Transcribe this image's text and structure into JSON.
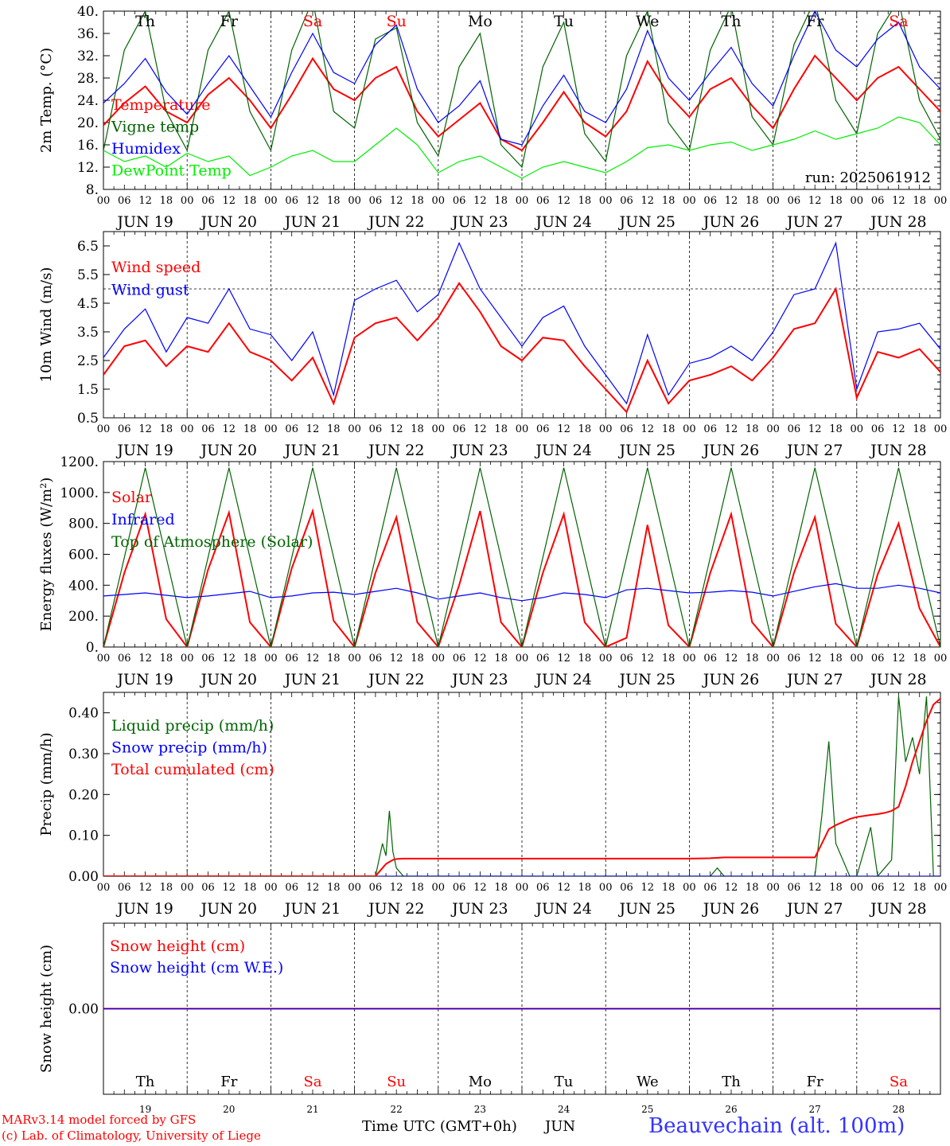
{
  "run_label": "run: 2025061912",
  "days": [
    "Th",
    "Fr",
    "Sa",
    "Su",
    "Mo",
    "Tu",
    "We",
    "Th",
    "Fr",
    "Sa"
  ],
  "weekend_days": [
    2,
    3,
    9
  ],
  "dates": [
    "JUN 19",
    "JUN 20",
    "JUN 21",
    "JUN 22",
    "JUN 23",
    "JUN 24",
    "JUN 25",
    "JUN 26",
    "JUN 27",
    "JUN 28"
  ],
  "day_numbers": [
    "19",
    "20",
    "21",
    "22",
    "23",
    "24",
    "25",
    "26",
    "27",
    "28"
  ],
  "hour_labels": [
    "00",
    "06",
    "12",
    "18"
  ],
  "end_hour_label": "00",
  "footer": {
    "model": "MARv3.14 model forced by GFS",
    "credit": "(c) Lab. of Climatology, University of Liege",
    "axis_title": "Time UTC (GMT+0h)",
    "month": "JUN",
    "station": "Beauvechain (alt. 100m)"
  },
  "colors": {
    "red": "#ff0000",
    "green": "#006400",
    "blue": "#0000ff",
    "lightgreen": "#00ee00",
    "grey": "#000000"
  },
  "chart_data": [
    {
      "type": "line",
      "ylabel": "2m Temp. (°C)",
      "ylim": [
        8,
        40
      ],
      "yticks": [
        8,
        12,
        16,
        20,
        24,
        28,
        32,
        36,
        40
      ],
      "ytick_labels": [
        "8.",
        "12.",
        "16.",
        "20.",
        "24.",
        "28.",
        "32.",
        "36.",
        "40."
      ],
      "x": [
        0,
        6,
        12,
        18,
        24,
        30,
        36,
        42,
        48,
        54,
        60,
        66,
        72,
        78,
        84,
        90,
        96,
        102,
        108,
        114,
        120,
        126,
        132,
        138,
        144,
        150,
        156,
        162,
        168,
        174,
        180,
        186,
        192,
        198,
        204,
        210,
        216,
        222,
        228,
        234,
        240
      ],
      "series": [
        {
          "name": "Temperature",
          "color": "red",
          "values": [
            19.5,
            23.5,
            26.5,
            22,
            20,
            25,
            28,
            24,
            19,
            25,
            31.5,
            26,
            24,
            28,
            30,
            22,
            17.5,
            20.5,
            23.5,
            17,
            15,
            20,
            25.5,
            20,
            17.5,
            22,
            31,
            25,
            21,
            26,
            28,
            23,
            19,
            26,
            32,
            28,
            24,
            28,
            30,
            26,
            22
          ]
        },
        {
          "name": "Vigne temp",
          "color": "green",
          "values": [
            15,
            33,
            40,
            22,
            15,
            33,
            40,
            22,
            15,
            33,
            42,
            22,
            19,
            35,
            37,
            20,
            14,
            30,
            36,
            16,
            12,
            30,
            38,
            18,
            13,
            32,
            40,
            20,
            15,
            33,
            41,
            21,
            16,
            34,
            42,
            24,
            18,
            36,
            42,
            24,
            17
          ]
        },
        {
          "name": "Humidex",
          "color": "blue",
          "values": [
            23.5,
            27,
            31.5,
            25.5,
            21.5,
            27,
            32,
            26.5,
            21,
            29,
            36,
            29,
            27,
            34,
            37.5,
            26,
            20,
            23,
            27.5,
            17,
            16,
            23,
            28.5,
            22,
            20,
            26,
            36.5,
            28,
            24,
            29,
            33.5,
            27,
            23,
            32,
            40,
            33,
            30,
            35,
            38,
            30,
            26
          ]
        },
        {
          "name": "DewPoint Temp",
          "color": "lightgreen",
          "values": [
            15,
            13,
            14,
            12,
            14.5,
            13,
            14,
            10.5,
            12,
            14,
            15,
            13,
            13,
            16,
            19,
            16,
            11,
            13,
            14,
            12,
            10,
            12,
            13,
            12,
            11,
            13,
            15.5,
            16,
            15,
            16,
            16.5,
            15,
            16,
            17,
            18.5,
            17,
            18,
            19,
            21,
            20,
            16
          ]
        }
      ]
    },
    {
      "type": "line",
      "ylabel": "10m Wind (m/s)",
      "ylim": [
        0.5,
        7.0
      ],
      "yticks": [
        0.5,
        1.5,
        2.5,
        3.5,
        4.5,
        5.5,
        6.5
      ],
      "ytick_labels": [
        "0.5",
        "1.5",
        "2.5",
        "3.5",
        "4.5",
        "5.5",
        "6.5"
      ],
      "reference_line": 5,
      "x": [
        0,
        6,
        12,
        18,
        24,
        30,
        36,
        42,
        48,
        54,
        60,
        66,
        72,
        78,
        84,
        90,
        96,
        102,
        108,
        114,
        120,
        126,
        132,
        138,
        144,
        150,
        156,
        162,
        168,
        174,
        180,
        186,
        192,
        198,
        204,
        210,
        216,
        222,
        228,
        234,
        240
      ],
      "series": [
        {
          "name": "Wind speed",
          "color": "red",
          "values": [
            2,
            3,
            3.2,
            2.3,
            3,
            2.8,
            3.8,
            2.8,
            2.5,
            1.8,
            2.6,
            1.0,
            3.3,
            3.8,
            4.0,
            3.2,
            4.0,
            5.2,
            4.2,
            3.0,
            2.5,
            3.3,
            3.2,
            2.3,
            1.5,
            0.7,
            2.5,
            1.0,
            1.8,
            2.0,
            2.3,
            1.8,
            2.6,
            3.6,
            3.8,
            5.0,
            1.2,
            2.8,
            2.6,
            2.9,
            2.1
          ]
        },
        {
          "name": "Wind gust",
          "color": "blue",
          "values": [
            2.6,
            3.6,
            4.3,
            2.8,
            4.0,
            3.8,
            5.0,
            3.6,
            3.4,
            2.5,
            3.5,
            1.3,
            4.6,
            5.0,
            5.3,
            4.2,
            4.8,
            6.6,
            5.0,
            4.0,
            3.0,
            4.0,
            4.4,
            3.0,
            2.0,
            1.0,
            3.4,
            1.3,
            2.4,
            2.6,
            3.0,
            2.5,
            3.5,
            4.8,
            5.0,
            6.6,
            1.5,
            3.5,
            3.6,
            3.8,
            2.9
          ]
        }
      ]
    },
    {
      "type": "line",
      "ylabel": "Energy fluxes (W/m²)",
      "ylim": [
        0,
        1200
      ],
      "yticks": [
        0,
        200,
        400,
        600,
        800,
        1000,
        1200
      ],
      "ytick_labels": [
        "0.",
        "200.",
        "400.",
        "600.",
        "800.",
        "1000.",
        "1200."
      ],
      "x": [
        0,
        6,
        12,
        18,
        24,
        30,
        36,
        42,
        48,
        54,
        60,
        66,
        72,
        78,
        84,
        90,
        96,
        102,
        108,
        114,
        120,
        126,
        132,
        138,
        144,
        150,
        156,
        162,
        168,
        174,
        180,
        186,
        192,
        198,
        204,
        210,
        216,
        222,
        228,
        234,
        240
      ],
      "series": [
        {
          "name": "Solar",
          "color": "red",
          "values": [
            0,
            480,
            860,
            180,
            0,
            500,
            870,
            160,
            0,
            510,
            880,
            170,
            0,
            480,
            840,
            160,
            0,
            400,
            880,
            160,
            0,
            480,
            860,
            160,
            0,
            60,
            790,
            140,
            0,
            480,
            860,
            160,
            0,
            480,
            840,
            150,
            0,
            470,
            800,
            250,
            0
          ]
        },
        {
          "name": "Infrared",
          "color": "blue",
          "values": [
            330,
            340,
            350,
            335,
            320,
            330,
            345,
            360,
            320,
            330,
            350,
            355,
            340,
            360,
            380,
            350,
            310,
            330,
            350,
            320,
            300,
            320,
            350,
            340,
            320,
            370,
            380,
            365,
            350,
            355,
            365,
            355,
            330,
            360,
            390,
            410,
            380,
            380,
            400,
            380,
            350
          ]
        },
        {
          "name": "Top of Atmosphere (Solar)",
          "color": "green",
          "values": [
            0,
            580,
            1160,
            580,
            0,
            580,
            1160,
            580,
            0,
            580,
            1160,
            580,
            0,
            580,
            1160,
            580,
            0,
            580,
            1160,
            580,
            0,
            580,
            1160,
            580,
            0,
            580,
            1160,
            580,
            0,
            580,
            1160,
            580,
            0,
            580,
            1160,
            580,
            0,
            580,
            1160,
            580,
            0
          ]
        }
      ]
    },
    {
      "type": "line",
      "ylabel": "Precip (mm/h)",
      "ylim": [
        0,
        0.45
      ],
      "yticks": [
        0,
        0.1,
        0.2,
        0.3,
        0.4
      ],
      "ytick_labels": [
        "0.00",
        "0.10",
        "0.20",
        "0.30",
        "0.40"
      ],
      "x": [
        0,
        24,
        48,
        72,
        78,
        80,
        81,
        82,
        83,
        84,
        86,
        90,
        96,
        120,
        144,
        168,
        174,
        176,
        178,
        180,
        192,
        204,
        206,
        208,
        210,
        214,
        216,
        220,
        222,
        224,
        226,
        228,
        230,
        232,
        234,
        236,
        238,
        240
      ],
      "series": [
        {
          "name": "Liquid precip (mm/h)",
          "color": "green",
          "values": [
            0,
            0,
            0,
            0,
            0,
            0.08,
            0.05,
            0.16,
            0.06,
            0.02,
            0,
            0,
            0,
            0,
            0,
            0,
            0,
            0.02,
            0,
            0,
            0,
            0,
            0.15,
            0.33,
            0.08,
            0,
            0,
            0.12,
            0,
            0.02,
            0.04,
            0.44,
            0.28,
            0.34,
            0.25,
            0.44,
            0,
            0
          ]
        },
        {
          "name": "Snow precip (mm/h)",
          "color": "blue",
          "values": [
            0,
            0,
            0,
            0,
            0,
            0,
            0,
            0,
            0,
            0,
            0,
            0,
            0,
            0,
            0,
            0,
            0,
            0,
            0,
            0,
            0,
            0,
            0,
            0,
            0,
            0,
            0,
            0,
            0,
            0,
            0,
            0,
            0,
            0,
            0,
            0,
            0,
            0
          ]
        },
        {
          "name": "Total cumulated (cm)",
          "color": "red",
          "values": [
            0,
            0,
            0,
            0,
            0,
            0.02,
            0.03,
            0.035,
            0.04,
            0.042,
            0.043,
            0.043,
            0.043,
            0.043,
            0.043,
            0.043,
            0.044,
            0.045,
            0.046,
            0.046,
            0.046,
            0.046,
            0.08,
            0.115,
            0.125,
            0.14,
            0.145,
            0.15,
            0.152,
            0.155,
            0.16,
            0.17,
            0.22,
            0.28,
            0.33,
            0.38,
            0.42,
            0.435
          ]
        }
      ]
    },
    {
      "type": "line",
      "ylabel": "Snow height (cm)",
      "ylim": [
        -1,
        1
      ],
      "yticks": [
        0
      ],
      "ytick_labels": [
        "0.00"
      ],
      "x": [
        0,
        240
      ],
      "series": [
        {
          "name": "Snow height (cm)",
          "color": "red",
          "values": [
            0,
            0
          ]
        },
        {
          "name": "Snow height (cm W.E.)",
          "color": "blue",
          "values": [
            0,
            0
          ]
        }
      ]
    }
  ]
}
